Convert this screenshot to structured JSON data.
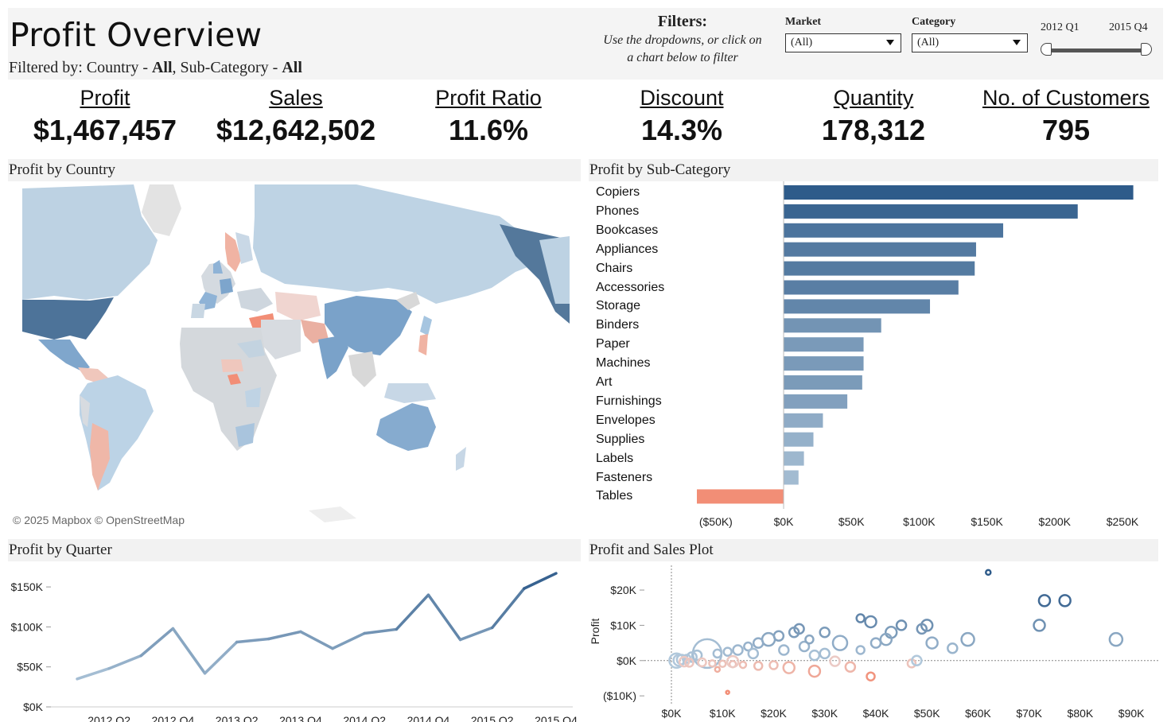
{
  "header": {
    "title": "Profit Overview",
    "subtitle_prefix": "Filtered by: Country - ",
    "subtitle_country": "All",
    "subtitle_mid": ", Sub-Category - ",
    "subtitle_subcat": "All",
    "filters_title": "Filters:",
    "filters_hint_line1": "Use the dropdowns, or click on",
    "filters_hint_line2": "a chart below to filter",
    "market_label": "Market",
    "market_value": "(All)",
    "category_label": "Category",
    "category_value": "(All)",
    "range_start": "2012 Q1",
    "range_end": "2015 Q4"
  },
  "kpis": [
    {
      "label": "Profit",
      "value": "$1,467,457"
    },
    {
      "label": "Sales",
      "value": "$12,642,502"
    },
    {
      "label": "Profit Ratio",
      "value": "11.6%"
    },
    {
      "label": "Discount",
      "value": "14.3%"
    },
    {
      "label": "Quantity",
      "value": "178,312"
    },
    {
      "label": "No. of Customers",
      "value": "795"
    }
  ],
  "sections": {
    "map": "Profit by Country",
    "subcat": "Profit by Sub-Category",
    "quarter": "Profit by Quarter",
    "scatter": "Profit and Sales Plot"
  },
  "map_attribution": "© 2025 Mapbox  © OpenStreetMap",
  "colors": {
    "positive_dark": "#2e5b8a",
    "positive_light": "#c0d4e4",
    "negative": "#f28e76",
    "header_bg": "#f4f4f4"
  },
  "chart_data": [
    {
      "type": "bar",
      "title": "Profit by Sub-Category",
      "orientation": "horizontal",
      "categories": [
        "Copiers",
        "Phones",
        "Bookcases",
        "Appliances",
        "Chairs",
        "Accessories",
        "Storage",
        "Binders",
        "Paper",
        "Machines",
        "Art",
        "Furnishings",
        "Envelopes",
        "Supplies",
        "Labels",
        "Fasteners",
        "Tables"
      ],
      "values": [
        258000,
        217000,
        162000,
        142000,
        141000,
        129000,
        108000,
        72000,
        59000,
        59000,
        58000,
        47000,
        29000,
        22000,
        15000,
        11000,
        -64000
      ],
      "xlim": [
        -64000,
        260000
      ],
      "xticks": [
        "($50K)",
        "$0K",
        "$50K",
        "$100K",
        "$150K",
        "$200K",
        "$250K"
      ],
      "xtick_values": [
        -50000,
        0,
        50000,
        100000,
        150000,
        200000,
        250000
      ]
    },
    {
      "type": "line",
      "title": "Profit by Quarter",
      "x": [
        "2012 Q1",
        "2012 Q2",
        "2012 Q3",
        "2012 Q4",
        "2013 Q1",
        "2013 Q2",
        "2013 Q3",
        "2013 Q4",
        "2014 Q1",
        "2014 Q2",
        "2014 Q3",
        "2014 Q4",
        "2015 Q1",
        "2015 Q2",
        "2015 Q3",
        "2015 Q4"
      ],
      "values": [
        35000,
        48000,
        64000,
        98000,
        42000,
        81000,
        85000,
        94000,
        73000,
        92000,
        97000,
        140000,
        84000,
        99000,
        148000,
        167000
      ],
      "ylim": [
        0,
        170000
      ],
      "yticks": [
        "$0K",
        "$50K",
        "$100K",
        "$150K"
      ],
      "ytick_values": [
        0,
        50000,
        100000,
        150000
      ],
      "xticks": [
        "2012 Q2",
        "2012 Q4",
        "2013 Q2",
        "2013 Q4",
        "2014 Q2",
        "2014 Q4",
        "2015 Q2",
        "2015 Q4"
      ]
    },
    {
      "type": "scatter",
      "title": "Profit and Sales Plot",
      "xlabel": "",
      "ylabel": "Profit",
      "xlim": [
        0,
        92000
      ],
      "ylim": [
        -12000,
        27000
      ],
      "xticks": [
        "$0K",
        "$10K",
        "$20K",
        "$30K",
        "$40K",
        "$50K",
        "$60K",
        "$70K",
        "$80K",
        "$90K"
      ],
      "xtick_values": [
        0,
        10000,
        20000,
        30000,
        40000,
        50000,
        60000,
        70000,
        80000,
        90000
      ],
      "yticks": [
        "($10K)",
        "$0K",
        "$10K",
        "$20K"
      ],
      "ytick_values": [
        -10000,
        0,
        10000,
        20000
      ],
      "points": [
        [
          62000,
          25000,
          3
        ],
        [
          73000,
          17000,
          7
        ],
        [
          77000,
          17000,
          7
        ],
        [
          72000,
          10000,
          7
        ],
        [
          87000,
          6000,
          8
        ],
        [
          58000,
          6000,
          8
        ],
        [
          39000,
          11000,
          7
        ],
        [
          45000,
          10000,
          6
        ],
        [
          50000,
          10000,
          7
        ],
        [
          49000,
          9000,
          6
        ],
        [
          43000,
          8000,
          7
        ],
        [
          42000,
          6000,
          7
        ],
        [
          40000,
          5000,
          6
        ],
        [
          37000,
          3000,
          5
        ],
        [
          33000,
          5000,
          9
        ],
        [
          25000,
          9000,
          6
        ],
        [
          24000,
          8000,
          6
        ],
        [
          21000,
          7000,
          6
        ],
        [
          19000,
          6000,
          8
        ],
        [
          17000,
          5000,
          6
        ],
        [
          15000,
          4000,
          5
        ],
        [
          13000,
          3000,
          6
        ],
        [
          11000,
          2500,
          5
        ],
        [
          9000,
          2000,
          5
        ],
        [
          7000,
          2000,
          18
        ],
        [
          5000,
          1500,
          6
        ],
        [
          4000,
          1000,
          6
        ],
        [
          3000,
          500,
          5
        ],
        [
          2000,
          300,
          6
        ],
        [
          1500,
          100,
          7
        ],
        [
          1000,
          0,
          9
        ],
        [
          2500,
          -300,
          6
        ],
        [
          6000,
          -500,
          5
        ],
        [
          8000,
          -800,
          4
        ],
        [
          10000,
          -900,
          4
        ],
        [
          12000,
          -1000,
          4
        ],
        [
          14000,
          -1200,
          4
        ],
        [
          17000,
          -1500,
          5
        ],
        [
          20000,
          -1300,
          5
        ],
        [
          23000,
          -2000,
          7
        ],
        [
          28000,
          -3000,
          7
        ],
        [
          35000,
          -1800,
          6
        ],
        [
          39000,
          -4500,
          5
        ],
        [
          47000,
          -800,
          5
        ],
        [
          48000,
          0,
          6
        ],
        [
          55000,
          3500,
          6
        ],
        [
          51000,
          5000,
          7
        ],
        [
          28000,
          1500,
          6
        ],
        [
          26000,
          4000,
          6
        ],
        [
          22000,
          3000,
          6
        ],
        [
          30000,
          2000,
          6
        ],
        [
          16000,
          2000,
          6
        ],
        [
          12000,
          -300,
          7
        ],
        [
          9000,
          -2500,
          3
        ],
        [
          11000,
          -9000,
          2
        ],
        [
          3500,
          -600,
          5
        ],
        [
          32000,
          -200,
          6
        ],
        [
          37000,
          12000,
          5
        ],
        [
          30000,
          8000,
          6
        ],
        [
          27000,
          6000,
          5
        ]
      ]
    }
  ]
}
